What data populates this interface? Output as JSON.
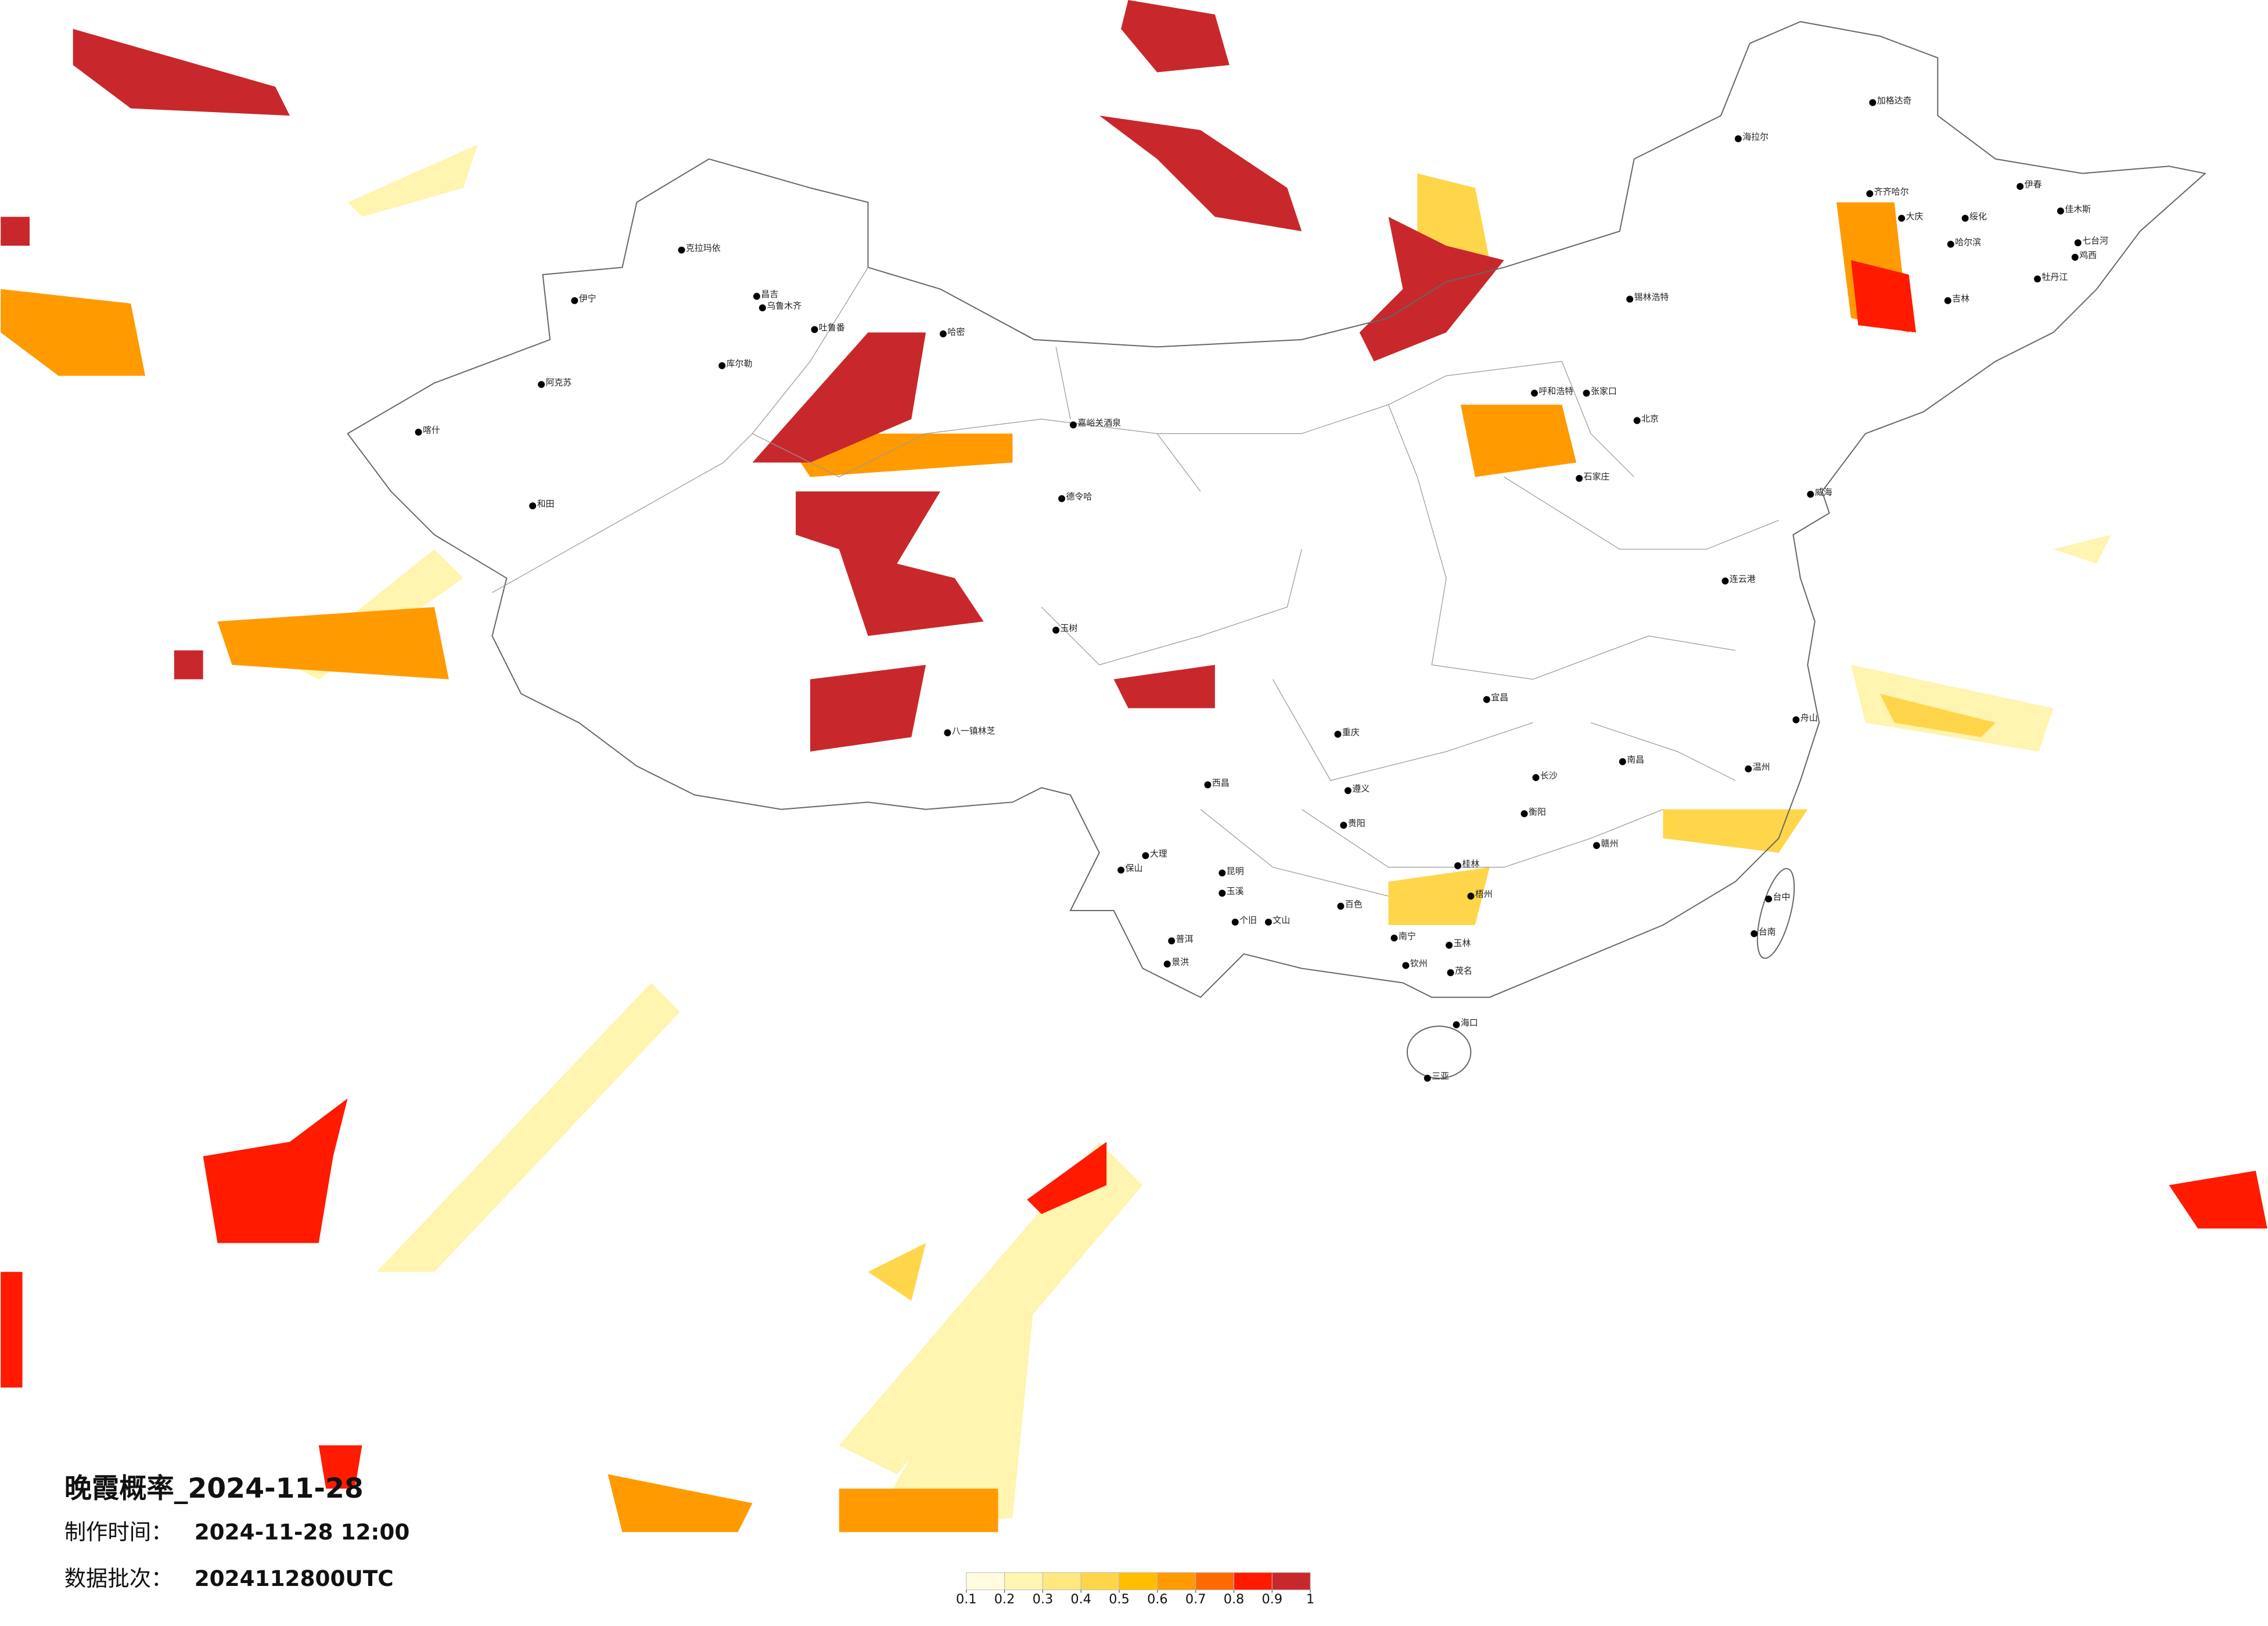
{
  "title": "晚霞概率_2024-11-28",
  "made_time": {
    "label": "制作时间：",
    "value": "2024-11-28 12:00"
  },
  "data_batch": {
    "label": "数据批次：",
    "value": "2024112800UTC"
  },
  "colorbar": {
    "ticks": [
      0.1,
      0.2,
      0.3,
      0.4,
      0.5,
      0.6,
      0.7,
      0.8,
      0.9,
      1
    ],
    "colors": [
      "#fffbe0",
      "#fff4b0",
      "#ffe880",
      "#ffd54a",
      "#ffbf00",
      "#ff9a00",
      "#ff6a00",
      "#ff1a00",
      "#c8282c"
    ]
  },
  "cities": [
    "克拉玛依",
    "伊宁",
    "昌吉",
    "乌鲁木齐",
    "吐鲁番",
    "哈密",
    "库尔勒",
    "阿克苏",
    "喀什",
    "和田",
    "海拉尔",
    "加格达奇",
    "齐齐哈尔",
    "大庆",
    "哈尔滨",
    "绥化",
    "伊春",
    "佳木斯",
    "七台河",
    "鸡西",
    "牡丹江",
    "吉林",
    "锡林浩特",
    "张家口",
    "呼和浩特",
    "北京",
    "石家庄",
    "威海",
    "连云港",
    "德令哈",
    "嘉峪关酒泉",
    "玉树",
    "八一镇林芝",
    "西昌",
    "大理",
    "保山",
    "昆明",
    "玉溪",
    "个旧",
    "文山",
    "普洱",
    "景洪",
    "百色",
    "南宁",
    "玉林",
    "钦州",
    "茂名",
    "海口",
    "三亚",
    "台中",
    "台南",
    "重庆",
    "遵义",
    "贵阳",
    "衡阳",
    "长沙",
    "宜昌",
    "赣州",
    "南昌",
    "温州",
    "舟山",
    "桂林",
    "梧州"
  ]
}
